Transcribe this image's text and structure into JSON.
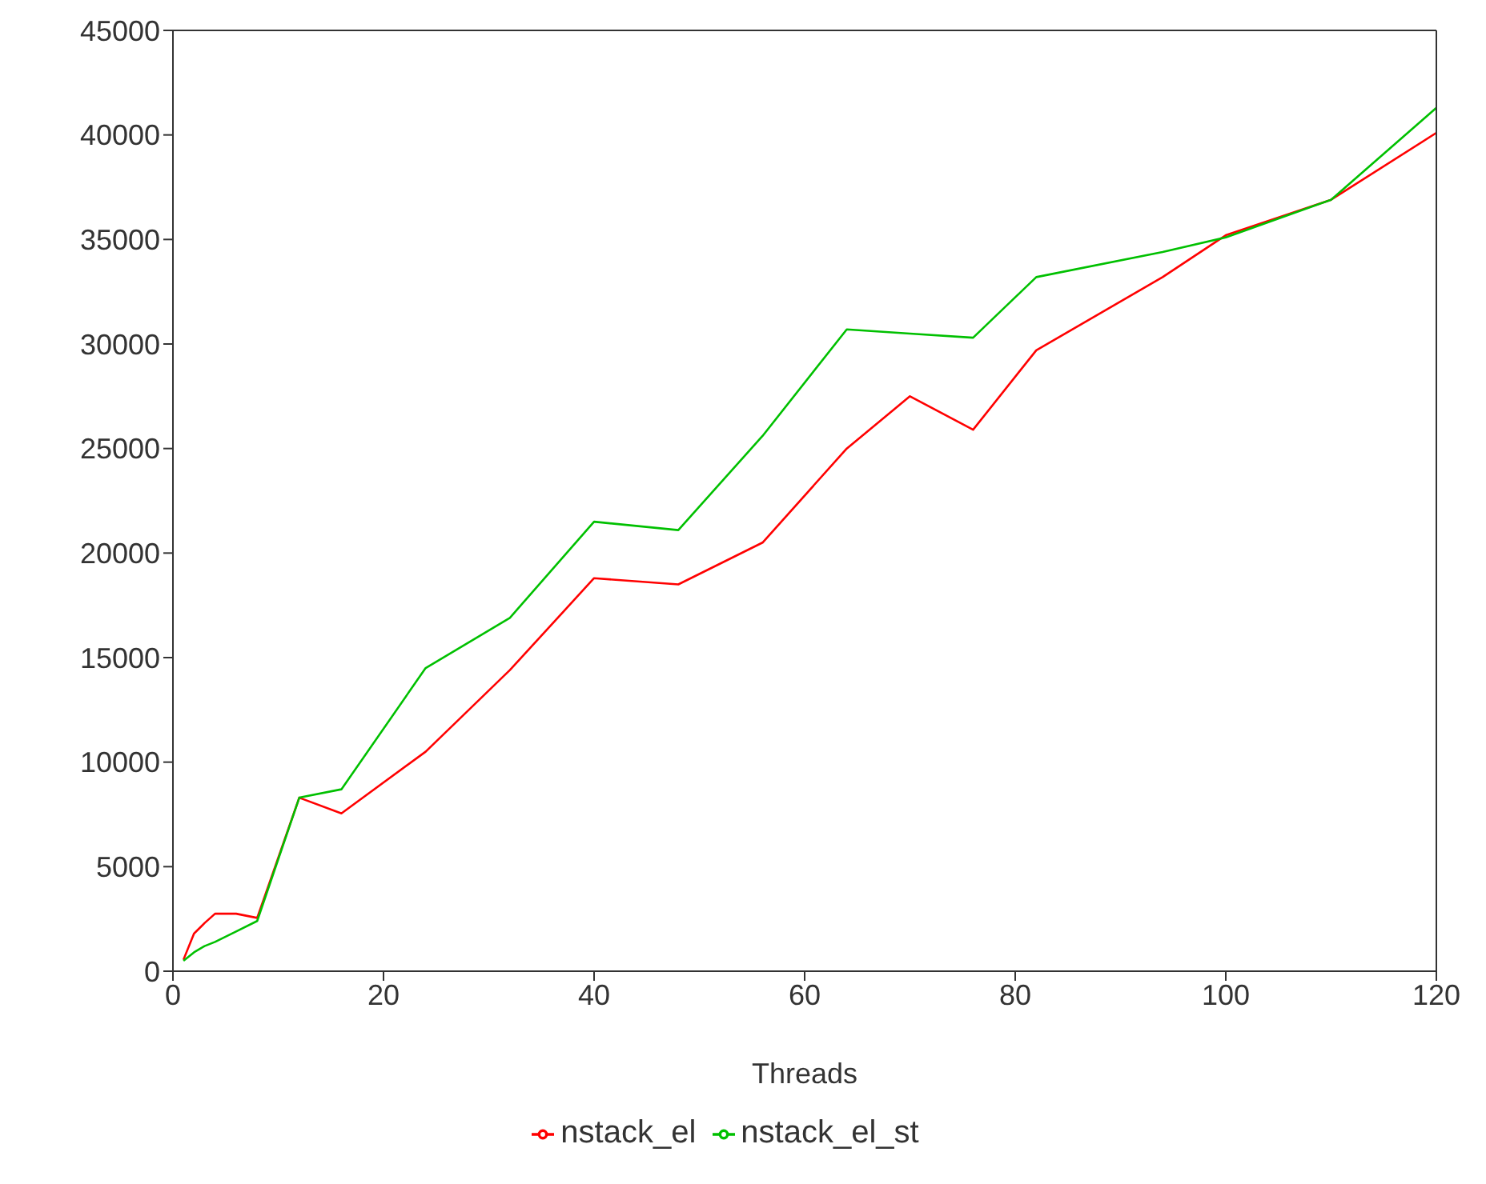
{
  "chart_data": {
    "type": "line",
    "xlabel": "Threads",
    "x": [
      1,
      2,
      3,
      4,
      6,
      8,
      12,
      16,
      24,
      32,
      40,
      48,
      56,
      64,
      70,
      76,
      82,
      94,
      100,
      110,
      120
    ],
    "series": [
      {
        "name": "nstack_el",
        "color": "#ff0000",
        "values": [
          550,
          1800,
          2300,
          2750,
          2750,
          2550,
          8300,
          7550,
          10500,
          14400,
          18800,
          18500,
          20500,
          25000,
          27500,
          25900,
          29700,
          33200,
          35200,
          36900,
          40100
        ]
      },
      {
        "name": "nstack_el_st",
        "color": "#00c000",
        "values": [
          500,
          900,
          1200,
          1400,
          1900,
          2400,
          8300,
          8700,
          14500,
          16900,
          21500,
          21100,
          25600,
          30700,
          30500,
          30300,
          33200,
          34400,
          35100,
          36900,
          41300
        ]
      }
    ],
    "xlim": [
      0,
      120
    ],
    "xticks": [
      0,
      20,
      40,
      60,
      80,
      100,
      120
    ],
    "ylim": [
      0,
      45000
    ],
    "yticks": [
      0,
      5000,
      10000,
      15000,
      20000,
      25000,
      30000,
      35000,
      40000,
      45000
    ],
    "grid": false,
    "legend": "bottom",
    "marker": "none",
    "line_style": "solid"
  }
}
